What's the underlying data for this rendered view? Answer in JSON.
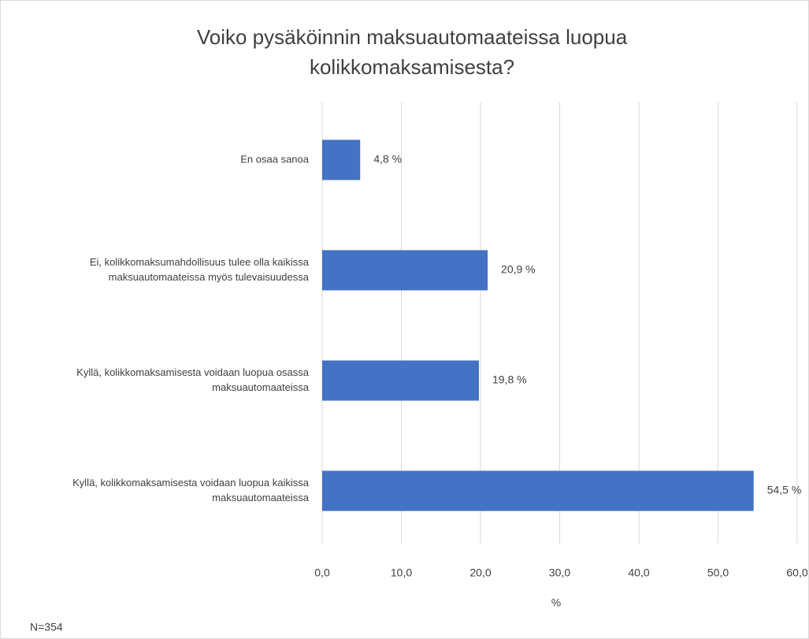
{
  "chart_data": {
    "type": "bar",
    "orientation": "horizontal",
    "title": "Voiko pysäköinnin maksuautomaateissa luopua kolikkomaksamisesta?",
    "categories": [
      [
        "En osaa sanoa"
      ],
      [
        "Ei, kolikkomaksumahdollisuus tulee olla kaikissa",
        "maksuautomaateissa myös tulevaisuudessa"
      ],
      [
        "Kyllä, kolikkomaksamisesta voidaan luopua osassa",
        "maksuautomaateissa"
      ],
      [
        "Kyllä, kolikkomaksamisesta voidaan luopua kaikissa",
        "maksuautomaateissa"
      ]
    ],
    "values": [
      4.8,
      20.9,
      19.8,
      54.5
    ],
    "value_labels": [
      "4,8 %",
      "20,9 %",
      "19,8 %",
      "54,5 %"
    ],
    "color": "#4472c4",
    "xlim": [
      0,
      60
    ],
    "xticks": [
      {
        "value": 0,
        "label": "0,0"
      },
      {
        "value": 10,
        "label": "10,0"
      },
      {
        "value": 20,
        "label": "20,0"
      },
      {
        "value": 30,
        "label": "30,0"
      },
      {
        "value": 40,
        "label": "40,0"
      },
      {
        "value": 50,
        "label": "50,0"
      },
      {
        "value": 60,
        "label": "60,0"
      }
    ],
    "xlabel": "%",
    "grid": true,
    "note": "N=354"
  }
}
